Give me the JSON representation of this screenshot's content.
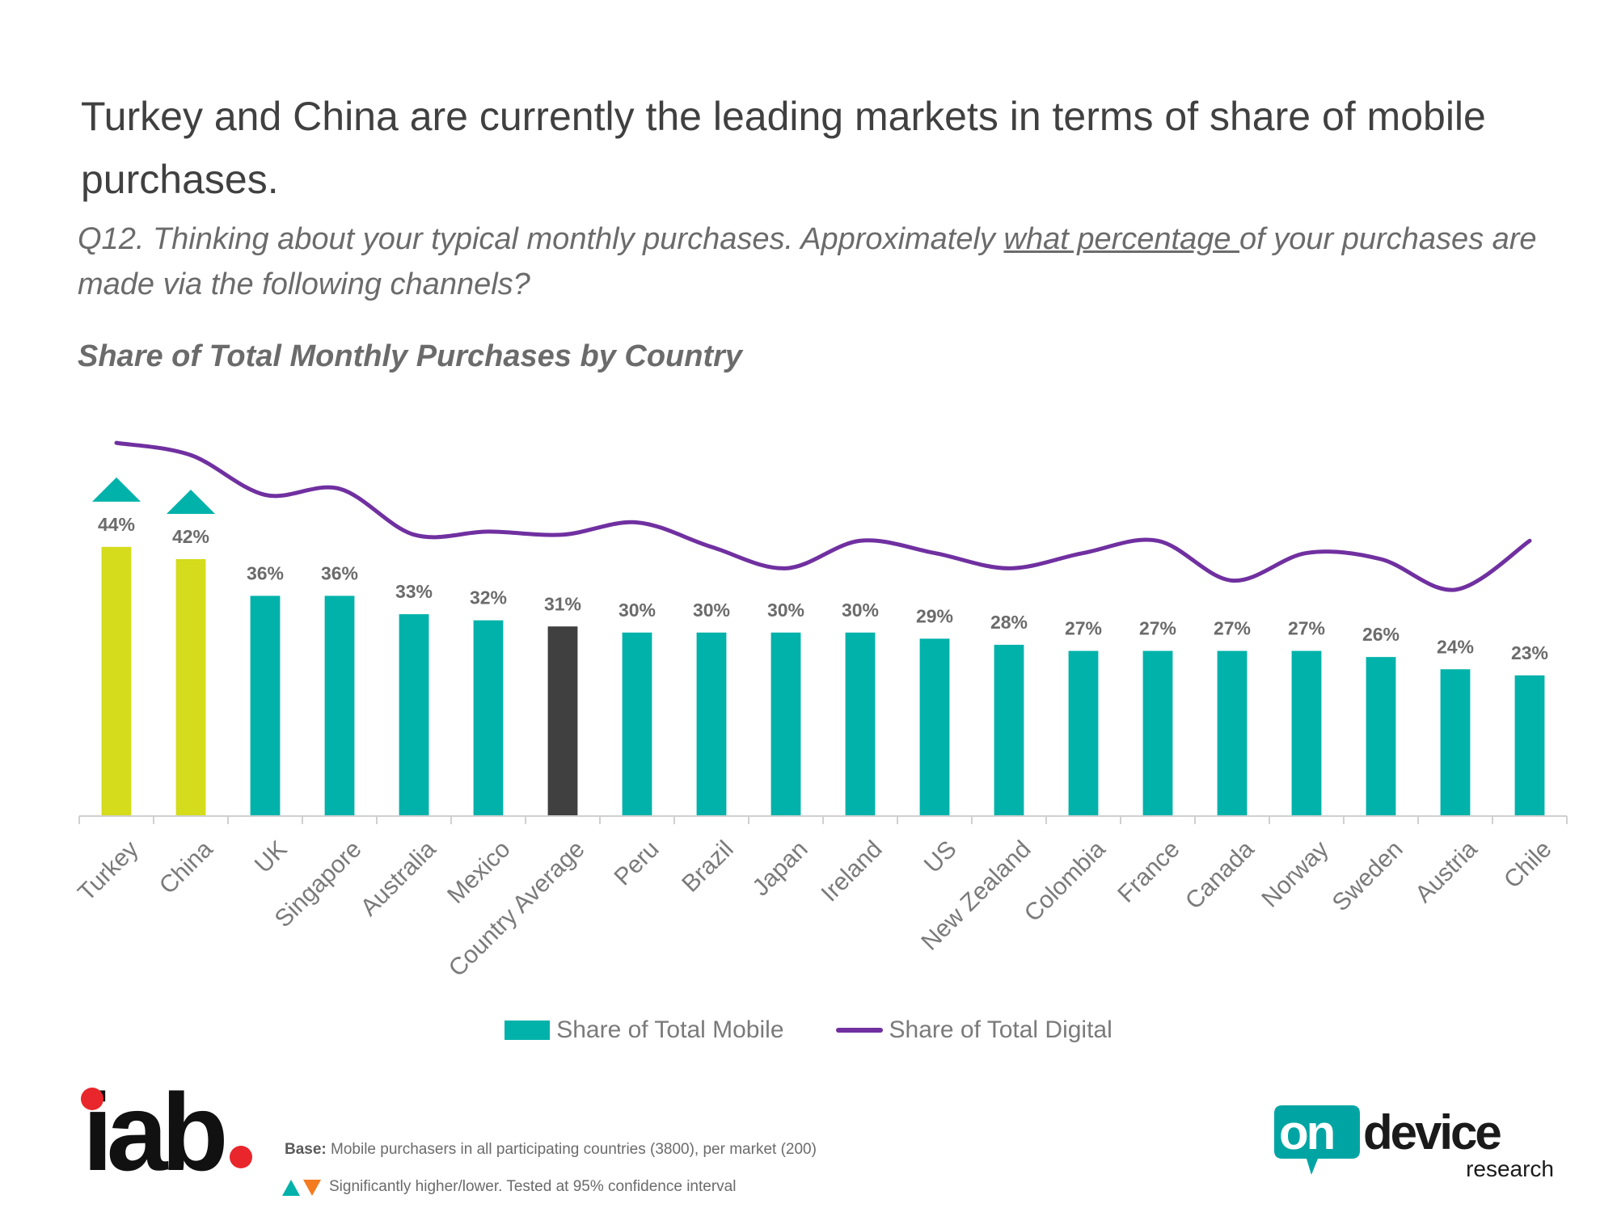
{
  "headline": "Turkey and China are currently the leading markets in terms of share of mobile purchases.",
  "question": {
    "prefix": "Q12. Thinking about your typical monthly purchases. Approximately ",
    "underlined": "what percentage ",
    "suffix": "of your purchases are made via the following channels?"
  },
  "colors": {
    "bar": "#00b2aa",
    "bar_highlight": "#d4dc1c",
    "bar_average": "#404040",
    "line": "#7030a0",
    "marker_up": "#00b2aa",
    "marker_down": "#f47b20"
  },
  "chart_data": {
    "type": "bar",
    "title": "Share of Total Monthly Purchases by Country",
    "xlabel": "",
    "ylabel": "",
    "ylim": [
      0,
      70
    ],
    "grid": false,
    "categories": [
      "Turkey",
      "China",
      "UK",
      "Singapore",
      "Australia",
      "Mexico",
      "Country Average",
      "Peru",
      "Brazil",
      "Japan",
      "Ireland",
      "US",
      "New Zealand",
      "Colombia",
      "France",
      "Canada",
      "Norway",
      "Sweden",
      "Austria",
      "Chile"
    ],
    "series": [
      {
        "name": "Share of Total Mobile",
        "type": "bar",
        "values": [
          44,
          42,
          36,
          36,
          33,
          32,
          31,
          30,
          30,
          30,
          30,
          29,
          28,
          27,
          27,
          27,
          27,
          26,
          24,
          23
        ],
        "labels": [
          "44%",
          "42%",
          "36%",
          "36%",
          "33%",
          "32%",
          "31%",
          "30%",
          "30%",
          "30%",
          "30%",
          "29%",
          "28%",
          "27%",
          "27%",
          "27%",
          "27%",
          "26%",
          "24%",
          "23%"
        ],
        "bar_style": [
          "highlight",
          "highlight",
          "normal",
          "normal",
          "normal",
          "normal",
          "average",
          "normal",
          "normal",
          "normal",
          "normal",
          "normal",
          "normal",
          "normal",
          "normal",
          "normal",
          "normal",
          "normal",
          "normal",
          "normal"
        ],
        "significance": [
          "higher",
          "higher",
          "",
          "",
          "",
          "",
          "",
          "",
          "",
          "",
          "",
          "",
          "",
          "",
          "",
          "",
          "",
          "",
          "",
          ""
        ]
      },
      {
        "name": "Share of Total Digital",
        "type": "line",
        "values": [
          61,
          59,
          52.5,
          53.5,
          46,
          46.5,
          46,
          48,
          44,
          40.5,
          45,
          43,
          40.5,
          43,
          45,
          38.5,
          43,
          42,
          37,
          45
        ]
      }
    ],
    "legend": [
      "Share of Total Mobile",
      "Share of Total Digital"
    ],
    "legend_position": "bottom"
  },
  "footer": {
    "iab_logo_text": "iab",
    "base_label": "Base:",
    "base_text": "Mobile purchasers in all participating countries (3800), per market (200)",
    "significance_text": "Significantly higher/lower. Tested at 95% confidence interval",
    "ondevice_logo_on": "on",
    "ondevice_logo_device": "device",
    "ondevice_logo_research": "research"
  }
}
